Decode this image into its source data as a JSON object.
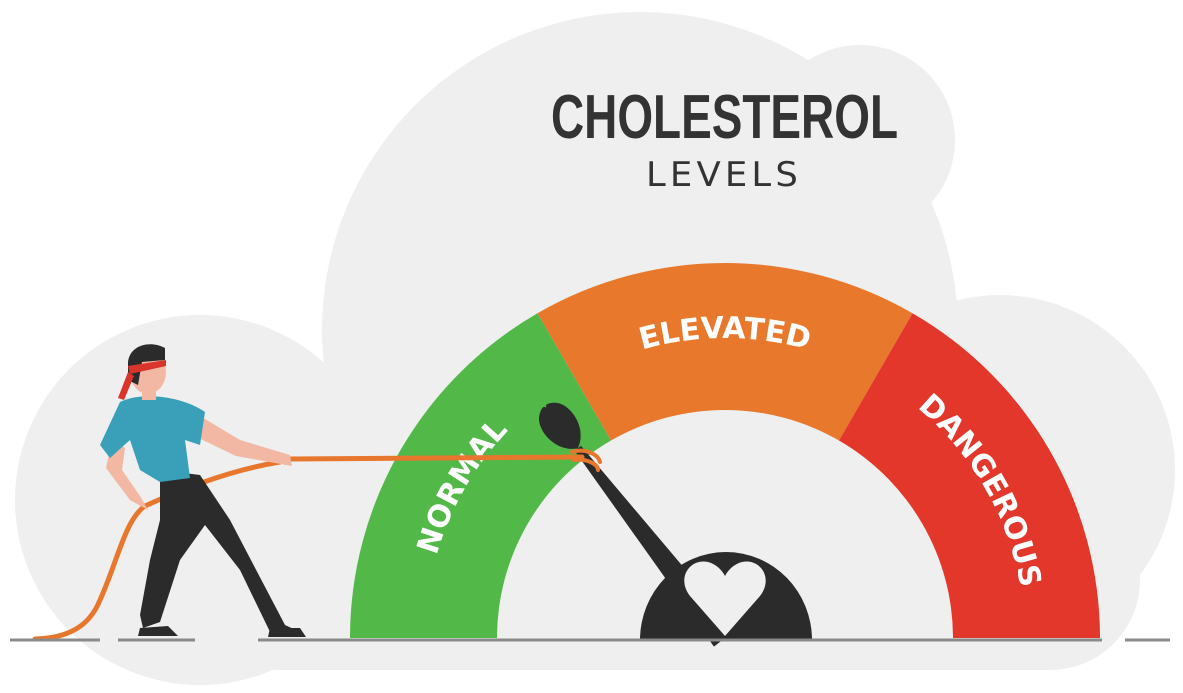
{
  "title": "CHOLESTEROL",
  "subtitle": "LEVELS",
  "gauge": {
    "zones": [
      {
        "label": "NORMAL",
        "color": "#52b848"
      },
      {
        "label": "ELEVATED",
        "color": "#e8792c"
      },
      {
        "label": "DANGEROUS",
        "color": "#e2372a"
      }
    ],
    "needle_fraction": 0.29,
    "needle_color": "#2b2b2b",
    "hub_icon": "heart-icon"
  },
  "colors": {
    "background_cloud": "#efefef",
    "rope": "#e8772e",
    "shirt": "#3a9fb8",
    "ground": "#8a8a8a"
  }
}
